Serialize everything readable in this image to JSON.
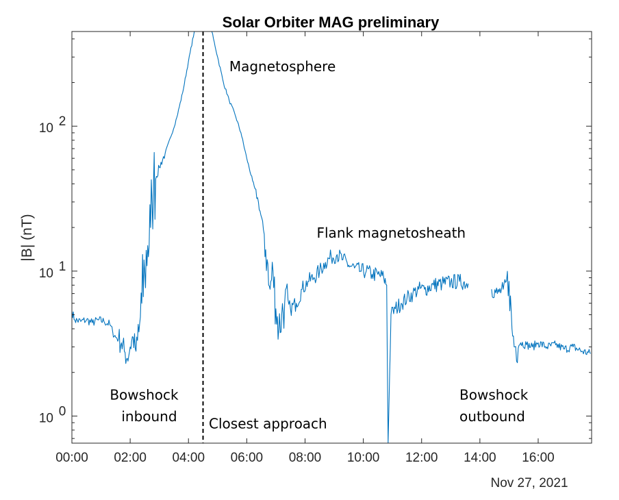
{
  "chart_data": {
    "type": "line",
    "title": "Solar Orbiter MAG preliminary",
    "xlabel": "",
    "ylabel": "|B| (nT)",
    "y_scale": "log",
    "ylim": [
      0.65,
      450
    ],
    "xlim": [
      "00:00",
      "17:50"
    ],
    "x_unit": "hours of day",
    "date_label": "Nov 27, 2021",
    "x_ticks": [
      {
        "value": 0,
        "label": "00:00"
      },
      {
        "value": 2,
        "label": "02:00"
      },
      {
        "value": 4,
        "label": "04:00"
      },
      {
        "value": 6,
        "label": "06:00"
      },
      {
        "value": 8,
        "label": "08:00"
      },
      {
        "value": 10,
        "label": "10:00"
      },
      {
        "value": 12,
        "label": "12:00"
      },
      {
        "value": 14,
        "label": "14:00"
      },
      {
        "value": 16,
        "label": "16:00"
      }
    ],
    "y_ticks": [
      {
        "value": 1,
        "base": "10",
        "exp": "0"
      },
      {
        "value": 10,
        "base": "10",
        "exp": "1"
      },
      {
        "value": 100,
        "base": "10",
        "exp": "2"
      }
    ],
    "grid": false,
    "line_color": "#0072BD",
    "closest_approach_time": 4.5,
    "annotations": [
      {
        "text": "Magnetosphere",
        "x": 5.4,
        "y": 240
      },
      {
        "text": "Flank magnetosheath",
        "x": 8.4,
        "y": 17
      },
      {
        "text": "Bowshock",
        "x": 1.3,
        "y": 1.3
      },
      {
        "text": "inbound",
        "x": 1.7,
        "y": 0.92
      },
      {
        "text": "Closest approach",
        "x": 4.7,
        "y": 0.82
      },
      {
        "text": "Bowshock",
        "x": 13.3,
        "y": 1.3
      },
      {
        "text": "outbound",
        "x": 13.3,
        "y": 0.92
      }
    ],
    "series": [
      {
        "values": [
          [
            0.0,
            5.3
          ],
          [
            0.1,
            4.6
          ],
          [
            0.3,
            4.5
          ],
          [
            0.5,
            4.6
          ],
          [
            0.7,
            4.4
          ],
          [
            0.9,
            4.6
          ],
          [
            1.1,
            4.5
          ],
          [
            1.3,
            4.3
          ],
          [
            1.4,
            3.8
          ],
          [
            1.5,
            3.5
          ],
          [
            1.6,
            3.4
          ],
          [
            1.7,
            3.2
          ],
          [
            1.8,
            2.8
          ],
          [
            1.9,
            2.5
          ],
          [
            2.0,
            3.0
          ],
          [
            2.1,
            3.5
          ],
          [
            2.2,
            2.8
          ],
          [
            2.3,
            3.8
          ],
          [
            2.4,
            6
          ],
          [
            2.5,
            10
          ],
          [
            2.6,
            15
          ],
          [
            2.7,
            20
          ],
          [
            2.75,
            30
          ],
          [
            2.8,
            40
          ],
          [
            2.9,
            45
          ],
          [
            3.0,
            52
          ],
          [
            3.2,
            65
          ],
          [
            3.4,
            85
          ],
          [
            3.6,
            115
          ],
          [
            3.8,
            170
          ],
          [
            4.0,
            280
          ],
          [
            4.2,
            450
          ],
          [
            4.8,
            450
          ],
          [
            5.0,
            300
          ],
          [
            5.2,
            200
          ],
          [
            5.4,
            150
          ],
          [
            5.6,
            120
          ],
          [
            5.8,
            90
          ],
          [
            6.0,
            60
          ],
          [
            6.2,
            42
          ],
          [
            6.4,
            30
          ],
          [
            6.6,
            18
          ],
          [
            6.7,
            12
          ],
          [
            6.75,
            8
          ],
          [
            6.8,
            7.5
          ],
          [
            6.9,
            10
          ],
          [
            7.0,
            5.5
          ],
          [
            7.1,
            4.0
          ],
          [
            7.2,
            5.0
          ],
          [
            7.3,
            6.0
          ],
          [
            7.5,
            5.5
          ],
          [
            7.7,
            6.0
          ],
          [
            7.9,
            7.5
          ],
          [
            8.1,
            8.5
          ],
          [
            8.3,
            9.0
          ],
          [
            8.5,
            10.0
          ],
          [
            8.7,
            11.5
          ],
          [
            8.9,
            12.5
          ],
          [
            9.1,
            13.0
          ],
          [
            9.3,
            12.0
          ],
          [
            9.5,
            11.0
          ],
          [
            9.7,
            10.5
          ],
          [
            9.9,
            10.0
          ],
          [
            10.1,
            10.0
          ],
          [
            10.3,
            9.5
          ],
          [
            10.5,
            9.5
          ],
          [
            10.7,
            9.0
          ],
          [
            10.8,
            8.0
          ],
          [
            10.85,
            0.65
          ],
          [
            10.95,
            5.0
          ],
          [
            11.1,
            5.5
          ],
          [
            11.3,
            6.0
          ],
          [
            11.5,
            6.5
          ],
          [
            11.7,
            7.0
          ],
          [
            11.9,
            7.5
          ],
          [
            12.1,
            7.5
          ],
          [
            12.4,
            8.0
          ],
          [
            12.7,
            8.2
          ],
          [
            13.0,
            8.4
          ],
          [
            13.3,
            8.5
          ],
          [
            13.6,
            8.2
          ],
          [
            14.4,
            7.5
          ],
          [
            14.6,
            7.0
          ],
          [
            14.8,
            7.5
          ],
          [
            15.0,
            8.5
          ],
          [
            15.1,
            4.0
          ],
          [
            15.2,
            3.0
          ],
          [
            15.4,
            3.2
          ],
          [
            15.6,
            3.1
          ],
          [
            15.8,
            3.0
          ],
          [
            16.0,
            3.2
          ],
          [
            16.3,
            3.0
          ],
          [
            16.6,
            3.1
          ],
          [
            16.9,
            2.9
          ],
          [
            17.2,
            3.0
          ],
          [
            17.5,
            2.8
          ],
          [
            17.8,
            2.7
          ]
        ]
      }
    ]
  }
}
